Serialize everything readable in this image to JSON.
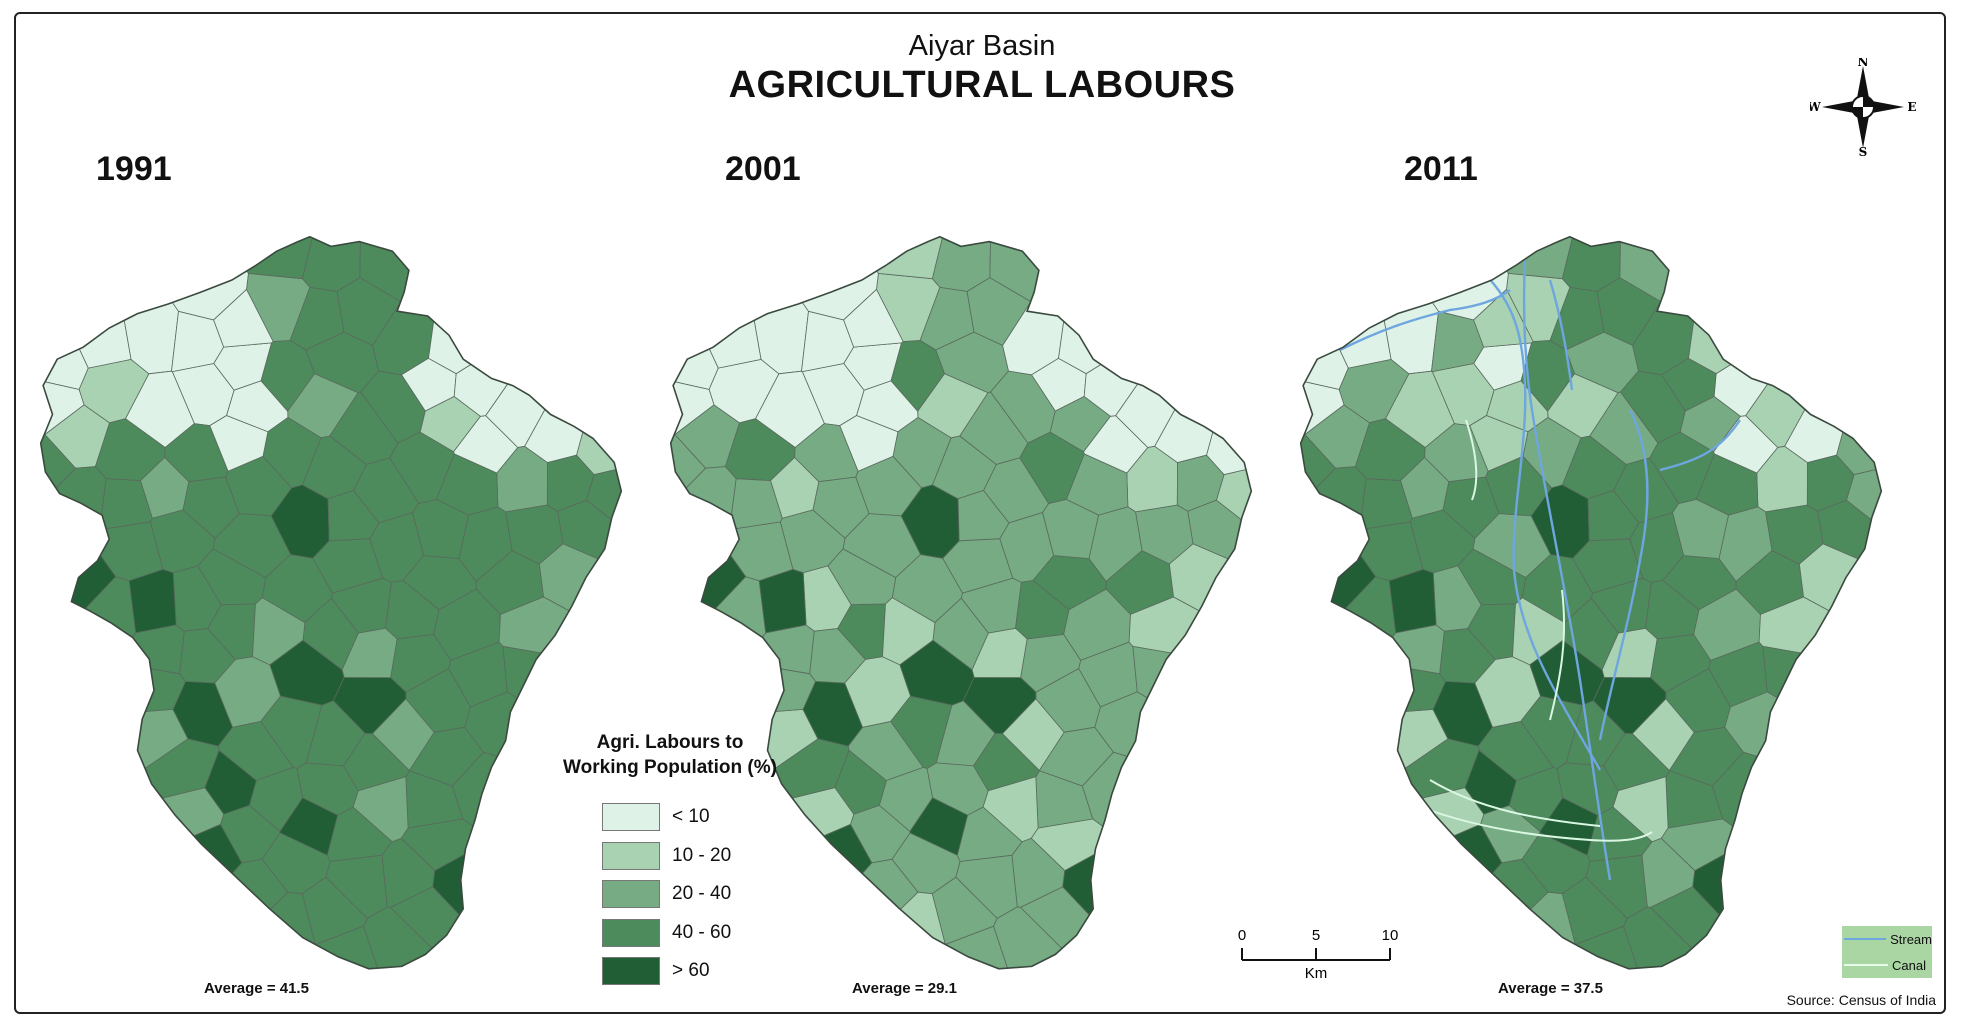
{
  "map": {
    "subtitle": "Aiyar Basin",
    "title": "AGRICULTURAL LABOURS",
    "source": "Source: Census of India"
  },
  "panels": [
    {
      "year": "1991",
      "average": "Average = 41.5"
    },
    {
      "year": "2001",
      "average": "Average = 29.1"
    },
    {
      "year": "2011",
      "average": "Average = 37.5"
    }
  ],
  "legend": {
    "title_line1": "Agri. Labours to",
    "title_line2": "Working Population (%)",
    "classes": [
      {
        "label": "< 10",
        "color": "#dff2e8"
      },
      {
        "label": "10 - 20",
        "color": "#a9d2b2"
      },
      {
        "label": "20 - 40",
        "color": "#76ab83"
      },
      {
        "label": "40 - 60",
        "color": "#4d8a5c"
      },
      {
        "label": "> 60",
        "color": "#215e35"
      }
    ]
  },
  "scale_bar": {
    "ticks": [
      "0",
      "5",
      "10"
    ],
    "unit": "Km"
  },
  "compass": {
    "n": "N",
    "s": "S",
    "e": "E",
    "w": "W"
  },
  "features": [
    {
      "label": "Stream",
      "color": "#6ea6df"
    },
    {
      "label": "Canal",
      "color": "#d9f7e2"
    }
  ]
}
